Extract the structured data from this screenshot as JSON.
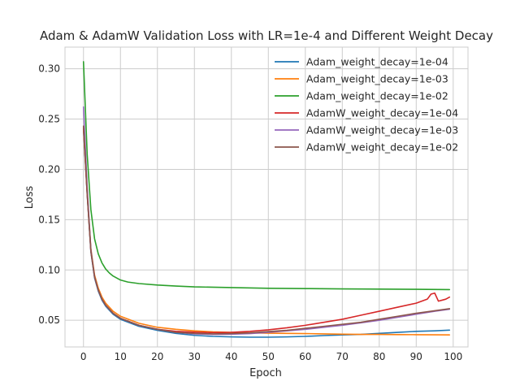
{
  "chart_data": {
    "type": "line",
    "title": "Adam & AdamW Validation Loss with LR=1e-4 and Different Weight Decay",
    "xlabel": "Epoch",
    "ylabel": "Loss",
    "xlim": [
      -5,
      104
    ],
    "ylim": [
      0.0235,
      0.3215
    ],
    "xticks": [
      0,
      10,
      20,
      30,
      40,
      50,
      60,
      70,
      80,
      90,
      100
    ],
    "yticks": [
      0.05,
      0.1,
      0.15,
      0.2,
      0.25,
      0.3
    ],
    "ytick_labels": [
      "0.05",
      "0.10",
      "0.15",
      "0.20",
      "0.25",
      "0.30"
    ],
    "grid": true,
    "legend_position": "upper-right",
    "series": [
      {
        "name": "Adam_weight_decay=1e-04",
        "color": "#1f77b4",
        "points": [
          [
            0,
            0.24
          ],
          [
            1,
            0.175
          ],
          [
            2,
            0.118
          ],
          [
            3,
            0.092
          ],
          [
            4,
            0.079
          ],
          [
            5,
            0.07
          ],
          [
            6,
            0.064
          ],
          [
            8,
            0.056
          ],
          [
            10,
            0.051
          ],
          [
            15,
            0.044
          ],
          [
            20,
            0.04
          ],
          [
            25,
            0.037
          ],
          [
            30,
            0.035
          ],
          [
            35,
            0.034
          ],
          [
            40,
            0.0335
          ],
          [
            45,
            0.0332
          ],
          [
            50,
            0.0332
          ],
          [
            55,
            0.0335
          ],
          [
            60,
            0.034
          ],
          [
            65,
            0.0348
          ],
          [
            70,
            0.0355
          ],
          [
            75,
            0.036
          ],
          [
            80,
            0.037
          ],
          [
            85,
            0.038
          ],
          [
            90,
            0.039
          ],
          [
            95,
            0.0395
          ],
          [
            99,
            0.0402
          ]
        ]
      },
      {
        "name": "Adam_weight_decay=1e-03",
        "color": "#ff7f0e",
        "points": [
          [
            0,
            0.242
          ],
          [
            1,
            0.178
          ],
          [
            2,
            0.121
          ],
          [
            3,
            0.095
          ],
          [
            4,
            0.082
          ],
          [
            5,
            0.073
          ],
          [
            6,
            0.067
          ],
          [
            8,
            0.059
          ],
          [
            10,
            0.054
          ],
          [
            15,
            0.047
          ],
          [
            20,
            0.043
          ],
          [
            25,
            0.041
          ],
          [
            30,
            0.0395
          ],
          [
            35,
            0.0385
          ],
          [
            40,
            0.038
          ],
          [
            45,
            0.0375
          ],
          [
            50,
            0.0372
          ],
          [
            55,
            0.037
          ],
          [
            60,
            0.0368
          ],
          [
            65,
            0.0365
          ],
          [
            70,
            0.0362
          ],
          [
            75,
            0.036
          ],
          [
            80,
            0.036
          ],
          [
            85,
            0.0358
          ],
          [
            90,
            0.0357
          ],
          [
            95,
            0.0356
          ],
          [
            99,
            0.0355
          ]
        ]
      },
      {
        "name": "Adam_weight_decay=1e-02",
        "color": "#2ca02c",
        "points": [
          [
            0,
            0.307
          ],
          [
            1,
            0.215
          ],
          [
            2,
            0.16
          ],
          [
            3,
            0.131
          ],
          [
            4,
            0.116
          ],
          [
            5,
            0.107
          ],
          [
            6,
            0.101
          ],
          [
            7,
            0.097
          ],
          [
            8,
            0.094
          ],
          [
            10,
            0.09
          ],
          [
            12,
            0.088
          ],
          [
            15,
            0.0865
          ],
          [
            20,
            0.085
          ],
          [
            25,
            0.084
          ],
          [
            30,
            0.0832
          ],
          [
            40,
            0.0825
          ],
          [
            50,
            0.0818
          ],
          [
            60,
            0.0815
          ],
          [
            70,
            0.0812
          ],
          [
            80,
            0.081
          ],
          [
            90,
            0.0808
          ],
          [
            99,
            0.0805
          ]
        ]
      },
      {
        "name": "AdamW_weight_decay=1e-04",
        "color": "#d62728",
        "points": [
          [
            0,
            0.241
          ],
          [
            1,
            0.176
          ],
          [
            2,
            0.119
          ],
          [
            3,
            0.093
          ],
          [
            4,
            0.08
          ],
          [
            5,
            0.071
          ],
          [
            6,
            0.065
          ],
          [
            8,
            0.057
          ],
          [
            10,
            0.052
          ],
          [
            15,
            0.045
          ],
          [
            20,
            0.041
          ],
          [
            25,
            0.039
          ],
          [
            30,
            0.0382
          ],
          [
            35,
            0.0378
          ],
          [
            40,
            0.038
          ],
          [
            45,
            0.039
          ],
          [
            50,
            0.0405
          ],
          [
            55,
            0.0425
          ],
          [
            60,
            0.045
          ],
          [
            65,
            0.048
          ],
          [
            70,
            0.051
          ],
          [
            75,
            0.055
          ],
          [
            80,
            0.059
          ],
          [
            85,
            0.063
          ],
          [
            90,
            0.067
          ],
          [
            93,
            0.071
          ],
          [
            94,
            0.076
          ],
          [
            95,
            0.077
          ],
          [
            96,
            0.069
          ],
          [
            97,
            0.07
          ],
          [
            98,
            0.071
          ],
          [
            99,
            0.073
          ]
        ]
      },
      {
        "name": "AdamW_weight_decay=1e-03",
        "color": "#9467bd",
        "points": [
          [
            0,
            0.262
          ],
          [
            1,
            0.182
          ],
          [
            2,
            0.12
          ],
          [
            3,
            0.093
          ],
          [
            4,
            0.08
          ],
          [
            5,
            0.071
          ],
          [
            6,
            0.065
          ],
          [
            8,
            0.057
          ],
          [
            10,
            0.052
          ],
          [
            15,
            0.045
          ],
          [
            20,
            0.041
          ],
          [
            25,
            0.038
          ],
          [
            30,
            0.0365
          ],
          [
            35,
            0.036
          ],
          [
            40,
            0.0362
          ],
          [
            45,
            0.0368
          ],
          [
            50,
            0.038
          ],
          [
            55,
            0.0395
          ],
          [
            60,
            0.041
          ],
          [
            65,
            0.043
          ],
          [
            70,
            0.045
          ],
          [
            75,
            0.0475
          ],
          [
            80,
            0.05
          ],
          [
            85,
            0.053
          ],
          [
            90,
            0.056
          ],
          [
            95,
            0.059
          ],
          [
            99,
            0.061
          ]
        ]
      },
      {
        "name": "AdamW_weight_decay=1e-02",
        "color": "#8c564b",
        "points": [
          [
            0,
            0.243
          ],
          [
            1,
            0.177
          ],
          [
            2,
            0.119
          ],
          [
            3,
            0.093
          ],
          [
            4,
            0.08
          ],
          [
            5,
            0.071
          ],
          [
            6,
            0.065
          ],
          [
            8,
            0.057
          ],
          [
            10,
            0.052
          ],
          [
            15,
            0.045
          ],
          [
            20,
            0.041
          ],
          [
            25,
            0.038
          ],
          [
            30,
            0.037
          ],
          [
            35,
            0.0365
          ],
          [
            40,
            0.0368
          ],
          [
            45,
            0.0375
          ],
          [
            50,
            0.0388
          ],
          [
            55,
            0.04
          ],
          [
            60,
            0.042
          ],
          [
            65,
            0.044
          ],
          [
            70,
            0.046
          ],
          [
            75,
            0.048
          ],
          [
            80,
            0.051
          ],
          [
            85,
            0.054
          ],
          [
            90,
            0.057
          ],
          [
            95,
            0.0595
          ],
          [
            99,
            0.0615
          ]
        ]
      }
    ]
  }
}
